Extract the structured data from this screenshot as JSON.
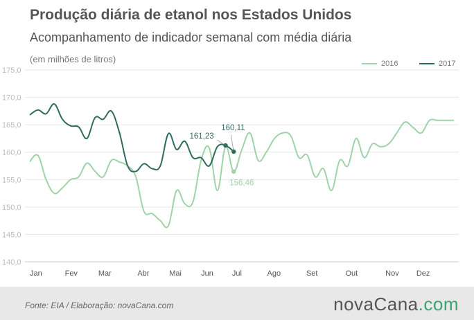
{
  "header": {
    "title": "Produção diária de etanol nos Estados Unidos",
    "subtitle": "Acompanhamento de indicador semanal com média diária",
    "units": "(em milhões de litros)"
  },
  "footer": {
    "source": "Fonte:  EIA  / Elaboração:  novaCana.com",
    "brand_main": "novaCana",
    "brand_accent": ".com"
  },
  "colors": {
    "s2016": "#9fd3a8",
    "s2017": "#2f6b5e",
    "grid": "#e6e6e6",
    "axis": "#cccccc",
    "tick": "#bbbbbb"
  },
  "chart_data": {
    "type": "line",
    "title": "Produção diária de etanol nos Estados Unidos",
    "subtitle": "Acompanhamento de indicador semanal com média diária",
    "ylabel": "(em milhões de litros)",
    "ylim": [
      140,
      175
    ],
    "yticks": [
      "140,0",
      "145,0",
      "150,0",
      "155,0",
      "160,0",
      "165,0",
      "170,0",
      "175,0"
    ],
    "ytick_values": [
      140,
      145,
      150,
      155,
      160,
      165,
      170,
      175
    ],
    "x_unit": "week (0 = early January, 52 = end of December)",
    "xlim": [
      0,
      52
    ],
    "months": [
      "Jan",
      "Fev",
      "Mar",
      "Abr",
      "Mai",
      "Jun",
      "Jul",
      "Ago",
      "Set",
      "Out",
      "Nov",
      "Dez"
    ],
    "month_weeks": [
      0,
      4.3,
      8.4,
      13.2,
      17.1,
      21.0,
      24.8,
      29.1,
      33.9,
      38.7,
      43.6,
      47.4
    ],
    "grid": true,
    "legend": "top-right",
    "series": [
      {
        "name": "2016",
        "x": [
          0.0,
          1.0,
          2.0,
          3.0,
          4.0,
          5.0,
          6.0,
          7.0,
          8.0,
          9.0,
          10.0,
          11.0,
          12.0,
          13.0,
          14.0,
          15.0,
          16.0,
          17.0,
          18.0,
          19.0,
          20.0,
          21.0,
          22.0,
          23.0,
          24.0,
          25.0,
          26.0,
          27.0,
          28.0,
          29.0,
          30.0,
          31.0,
          32.0,
          33.0,
          34.0,
          35.0,
          36.0,
          37.0,
          38.0,
          39.0,
          40.0,
          41.0,
          42.0,
          43.0,
          44.0,
          45.0,
          46.0,
          47.0,
          48.0,
          49.0,
          50.0,
          51.0,
          52.0
        ],
        "y": [
          158.3,
          159.4,
          155.0,
          152.5,
          153.5,
          155.0,
          155.5,
          158.0,
          156.5,
          155.5,
          158.5,
          158.2,
          157.5,
          155.5,
          149.2,
          148.8,
          147.5,
          146.6,
          153.0,
          150.6,
          150.9,
          158.5,
          160.8,
          153.0,
          161.0,
          156.46,
          160.5,
          163.5,
          158.5,
          160.0,
          162.5,
          163.5,
          163.0,
          159.0,
          159.5,
          155.5,
          157.0,
          153.0,
          158.5,
          157.5,
          162.5,
          159.0,
          161.5,
          161.0,
          161.5,
          163.5,
          165.5,
          164.5,
          163.5,
          165.8,
          165.8,
          165.8,
          165.8
        ]
      },
      {
        "name": "2017",
        "x": [
          0.0,
          1.0,
          2.0,
          3.0,
          4.0,
          5.0,
          6.0,
          7.0,
          8.0,
          9.0,
          10.0,
          11.0,
          12.0,
          13.0,
          14.0,
          15.0,
          16.0,
          17.0,
          18.0,
          19.0,
          20.0,
          21.0,
          22.0,
          23.0,
          24.0,
          25.0
        ],
        "y": [
          166.8,
          167.7,
          167.0,
          168.8,
          166.0,
          164.8,
          164.6,
          162.5,
          166.3,
          166.0,
          167.5,
          163.5,
          157.5,
          156.5,
          157.9,
          157.0,
          157.5,
          163.4,
          160.5,
          162.0,
          159.0,
          159.0,
          157.5,
          161.0,
          161.23,
          160.11
        ]
      }
    ],
    "annotations": [
      {
        "series": "2017",
        "x": 24,
        "label": "161,23"
      },
      {
        "series": "2017",
        "x": 25,
        "label": "160,11"
      },
      {
        "series": "2016",
        "x": 25,
        "label": "156,46"
      }
    ]
  }
}
